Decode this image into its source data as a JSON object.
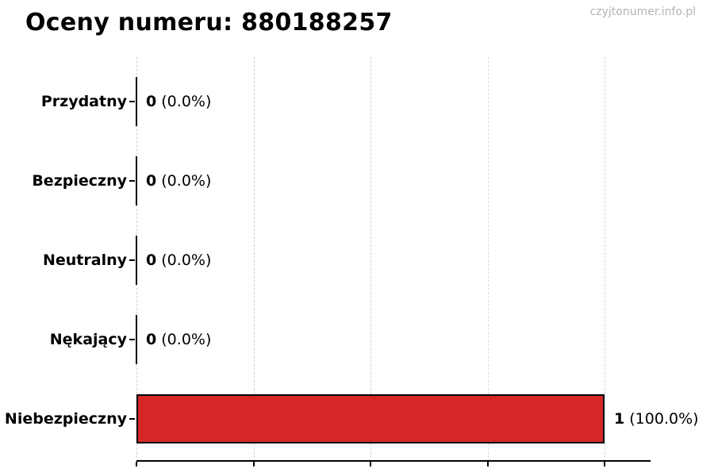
{
  "title": "Oceny numeru: 880188257",
  "watermark": "czyjtonumer.info.pl",
  "chart_data": {
    "type": "bar",
    "orientation": "horizontal",
    "title": "Oceny numeru: 880188257",
    "xlabel": "",
    "ylabel": "",
    "categories": [
      "Przydatny",
      "Bezpieczny",
      "Neutralny",
      "Nękający",
      "Niebezpieczny"
    ],
    "values": [
      0,
      0,
      0,
      0,
      1
    ],
    "rows": [
      {
        "label": "Przydatny",
        "value": 0,
        "count": "0",
        "pct": "(0.0%)"
      },
      {
        "label": "Bezpieczny",
        "value": 0,
        "count": "0",
        "pct": "(0.0%)"
      },
      {
        "label": "Neutralny",
        "value": 0,
        "count": "0",
        "pct": "(0.0%)"
      },
      {
        "label": "Nękający",
        "value": 0,
        "count": "0",
        "pct": "(0.0%)"
      },
      {
        "label": "Niebezpieczny",
        "value": 1,
        "count": "1",
        "pct": "(100.0%)"
      }
    ],
    "xlim": [
      0,
      1.1
    ],
    "x_ticks": [
      0,
      0.25,
      0.5,
      0.75,
      1.0
    ],
    "grid": true,
    "legend": false,
    "colors": {
      "bar_fill": "#d62728",
      "bar_edge": "#000000",
      "gridline": "#d4d4d4",
      "axis": "#000000",
      "title_text": "#000000",
      "watermark_text": "#b3b3b3",
      "background": "#ffffff"
    }
  }
}
